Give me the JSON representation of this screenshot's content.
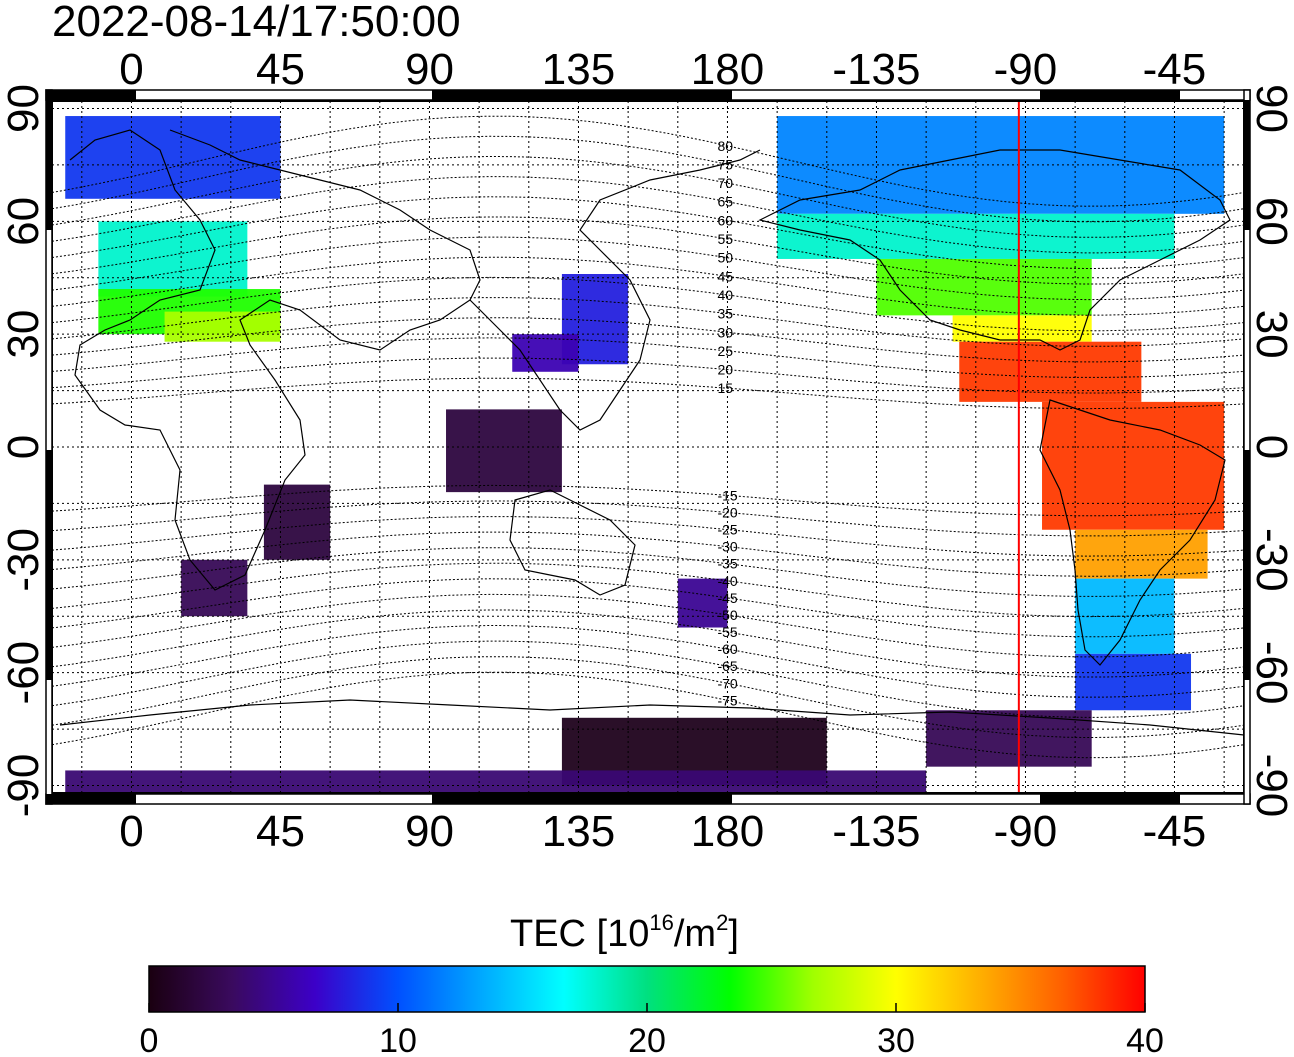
{
  "timestamp": "2022-08-14/17:50:00",
  "axes": {
    "lon_ticks": [
      "0",
      "45",
      "90",
      "135",
      "180",
      "-135",
      "-90",
      "-45"
    ],
    "lon_values": [
      0,
      45,
      90,
      135,
      180,
      225,
      270,
      315
    ],
    "lat_ticks": [
      "90",
      "60",
      "30",
      "0",
      "-30",
      "-60",
      "-90"
    ],
    "lat_values": [
      90,
      60,
      30,
      0,
      -30,
      -60,
      -90
    ],
    "lon_range": [
      -24,
      336
    ],
    "lat_range": [
      -92,
      92
    ],
    "grid": true
  },
  "magnetic_latitude_labels": [
    "80",
    "75",
    "70",
    "65",
    "60",
    "55",
    "50",
    "45",
    "40",
    "35",
    "30",
    "25",
    "20",
    "15",
    "-15",
    "-20",
    "-25",
    "-30",
    "-35",
    "-40",
    "-45",
    "-50",
    "-55",
    "-60",
    "-65",
    "-70",
    "-75"
  ],
  "marker_line": {
    "lon": 268,
    "color": "#ff0000"
  },
  "colorbar": {
    "title": "TEC  [10",
    "title_sup": "16",
    "title_unit": "/m",
    "title_sup2": "2",
    "title_end": "]",
    "ticks": [
      "0",
      "10",
      "20",
      "30",
      "40"
    ],
    "tick_values": [
      0,
      10,
      20,
      30,
      40
    ],
    "range": [
      0,
      40
    ],
    "colors": [
      "#1a0010",
      "#3a0a5e",
      "#3c00c8",
      "#0050ff",
      "#00a8ff",
      "#00ffff",
      "#00e080",
      "#00ff00",
      "#a0ff00",
      "#ffff00",
      "#ffb000",
      "#ff6000",
      "#ff0000"
    ]
  },
  "tec_regions": [
    {
      "lon": [
        -20,
        45
      ],
      "lat": [
        66,
        88
      ],
      "tec": 9
    },
    {
      "lon": [
        -10,
        35
      ],
      "lat": [
        40,
        60
      ],
      "tec": 18
    },
    {
      "lon": [
        -10,
        45
      ],
      "lat": [
        30,
        42
      ],
      "tec": 24
    },
    {
      "lon": [
        10,
        45
      ],
      "lat": [
        28,
        36
      ],
      "tec": 27
    },
    {
      "lon": [
        130,
        150
      ],
      "lat": [
        22,
        46
      ],
      "tec": 8
    },
    {
      "lon": [
        115,
        135
      ],
      "lat": [
        20,
        30
      ],
      "tec": 6
    },
    {
      "lon": [
        95,
        130
      ],
      "lat": [
        -12,
        10
      ],
      "tec": 2
    },
    {
      "lon": [
        40,
        60
      ],
      "lat": [
        -30,
        -10
      ],
      "tec": 2
    },
    {
      "lon": [
        15,
        35
      ],
      "lat": [
        -45,
        -30
      ],
      "tec": 3
    },
    {
      "lon": [
        165,
        180
      ],
      "lat": [
        -48,
        -35
      ],
      "tec": 5
    },
    {
      "lon": [
        195,
        330
      ],
      "lat": [
        62,
        88
      ],
      "tec": 12
    },
    {
      "lon": [
        195,
        315
      ],
      "lat": [
        50,
        62
      ],
      "tec": 18
    },
    {
      "lon": [
        225,
        290
      ],
      "lat": [
        35,
        50
      ],
      "tec": 25
    },
    {
      "lon": [
        248,
        290
      ],
      "lat": [
        28,
        35
      ],
      "tec": 30
    },
    {
      "lon": [
        250,
        305
      ],
      "lat": [
        12,
        28
      ],
      "tec": 38
    },
    {
      "lon": [
        275,
        330
      ],
      "lat": [
        -22,
        12
      ],
      "tec": 38
    },
    {
      "lon": [
        285,
        325
      ],
      "lat": [
        -35,
        -22
      ],
      "tec": 34
    },
    {
      "lon": [
        285,
        315
      ],
      "lat": [
        -55,
        -35
      ],
      "tec": 14
    },
    {
      "lon": [
        285,
        320
      ],
      "lat": [
        -70,
        -55
      ],
      "tec": 9
    },
    {
      "lon": [
        240,
        290
      ],
      "lat": [
        -85,
        -70
      ],
      "tec": 3
    },
    {
      "lon": [
        130,
        210
      ],
      "lat": [
        -90,
        -72
      ],
      "tec": 0.5
    },
    {
      "lon": [
        -20,
        240
      ],
      "lat": [
        -92,
        -86
      ],
      "tec": 4
    }
  ]
}
